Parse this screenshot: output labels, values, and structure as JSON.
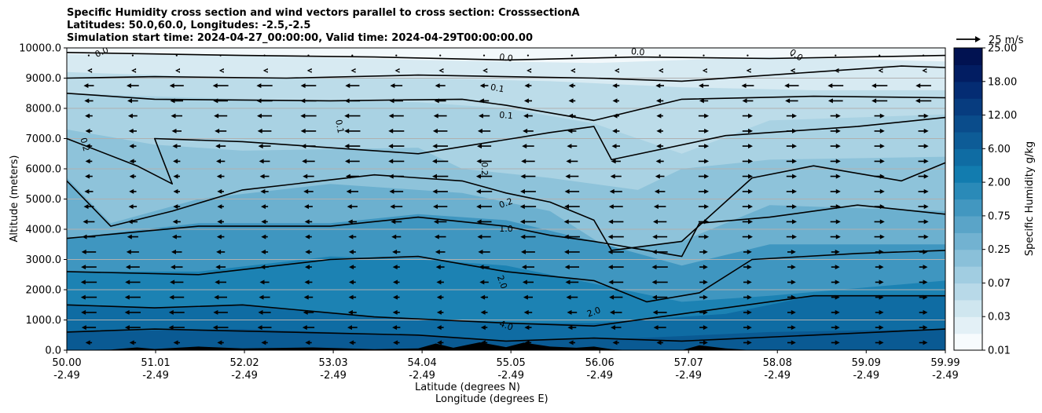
{
  "chart_data": {
    "type": "contourf_cross_section",
    "title_lines": [
      "Specific Humidity cross section and wind vectors parallel to cross section: CrosssectionA",
      "Latitudes: 50.0,60.0, Longitudes: -2.5,-2.5",
      "Simulation start time: 2024-04-27_00:00:00, Valid time: 2024-04-29T00:00:00.00"
    ],
    "ylabel": "Altitude (meters)",
    "xlabel_line1": "Latitude (degrees N)",
    "xlabel_line2": "Longitude (degrees E)",
    "ylim": [
      0,
      10000
    ],
    "xlim": [
      50.0,
      59.99
    ],
    "y_ticks": [
      0,
      1000,
      2000,
      3000,
      4000,
      5000,
      6000,
      7000,
      8000,
      9000,
      10000
    ],
    "y_tick_labels": [
      "0.0",
      "1000.0",
      "2000.0",
      "3000.0",
      "4000.0",
      "5000.0",
      "6000.0",
      "7000.0",
      "8000.0",
      "9000.0",
      "10000.0"
    ],
    "x_ticks": [
      50.0,
      51.01,
      52.02,
      53.03,
      54.04,
      55.05,
      56.06,
      57.07,
      58.08,
      59.09,
      59.99
    ],
    "x_tick_labels_lat": [
      "50.00",
      "51.01",
      "52.02",
      "53.03",
      "54.04",
      "55.05",
      "56.06",
      "57.07",
      "58.08",
      "59.09",
      "59.99"
    ],
    "x_tick_labels_lon": [
      "-2.49",
      "-2.49",
      "-2.49",
      "-2.49",
      "-2.49",
      "-2.49",
      "-2.49",
      "-2.49",
      "-2.49",
      "-2.49",
      "-2.49"
    ],
    "colorbar": {
      "label": "Specific Humidity g/kg",
      "tick_labels": [
        "0.01",
        "0.03",
        "0.07",
        "0.25",
        "0.75",
        "2.00",
        "6.00",
        "12.00",
        "18.00",
        "25.00"
      ],
      "colors": [
        "#f7fbfd",
        "#e3f0f6",
        "#cfe6ef",
        "#b8d9e8",
        "#a1cde1",
        "#8ac0d9",
        "#72b2d1",
        "#5aa4c8",
        "#4297c0",
        "#2a8ab8",
        "#127caf",
        "#0f6ca3",
        "#0d5c97",
        "#0a4c8b",
        "#073c7f",
        "#042c73",
        "#021d62",
        "#011251"
      ]
    },
    "contour_labels": [
      "0.0",
      "0.0",
      "0.0",
      "0.0",
      "0.1",
      "0.1",
      "0.1",
      "0.2",
      "0.2",
      "0.2",
      "1.0",
      "2.0",
      "2.0",
      "4.0"
    ],
    "contour_levels": [
      0.0,
      0.1,
      0.2,
      1.0,
      2.0,
      4.0
    ],
    "wind_reference_label": "25 m/s",
    "wind_field": "mostly westward (leftward) flow at mid-levels 2000-8000 m south of 57N, eastward flow north of 57N at 4000-8000 m, weak flow near top",
    "grid": "horizontal lines only"
  }
}
